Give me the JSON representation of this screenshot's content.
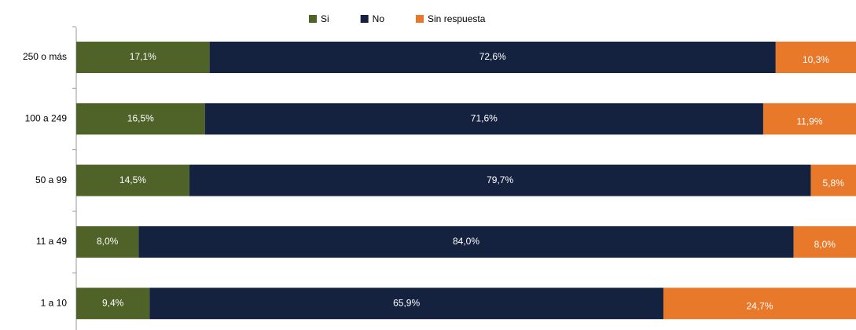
{
  "chart_data": {
    "type": "stacked-bar-horizontal",
    "categories": [
      "250 o más",
      "100 a 249",
      "50 a 99",
      "11 a 49",
      "1 a 10"
    ],
    "series": [
      {
        "name": "Si",
        "color": "#4f6228",
        "values": [
          17.1,
          16.5,
          14.5,
          8.0,
          9.4
        ],
        "value_labels": [
          "17,1%",
          "16,5%",
          "14,5%",
          "8,0%",
          "9,4%"
        ]
      },
      {
        "name": "No",
        "color": "#14213f",
        "values": [
          72.6,
          71.6,
          79.7,
          84.0,
          65.9
        ],
        "value_labels": [
          "72,6%",
          "71,6%",
          "79,7%",
          "84,0%",
          "65,9%"
        ]
      },
      {
        "name": "Sin respuesta",
        "color": "#e8782a",
        "values": [
          10.3,
          11.9,
          5.8,
          8.0,
          24.7
        ],
        "value_labels": [
          "10,3%",
          "11,9%",
          "5,8%",
          "8,0%",
          "24,7%"
        ]
      }
    ],
    "xlim": [
      0,
      100
    ],
    "legend": "top"
  }
}
